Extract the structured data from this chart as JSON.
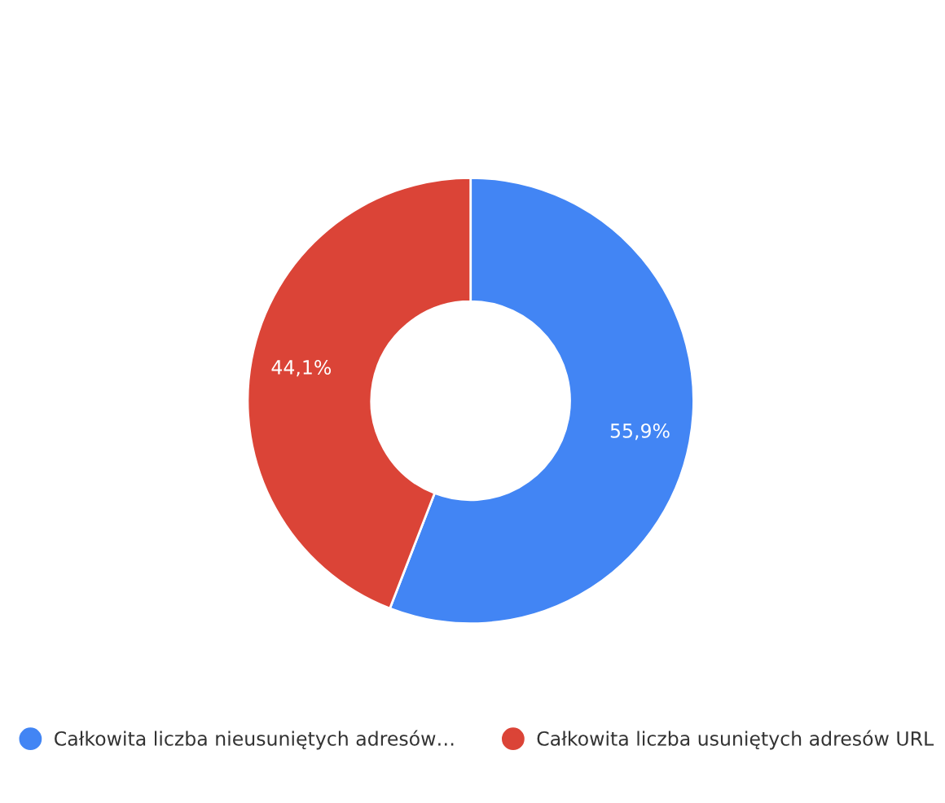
{
  "chart_data": {
    "type": "donut",
    "categories": [
      "Całkowita liczba nieusuniętych adresów…",
      "Całkowita liczba usuniętych adresów URL"
    ],
    "values": [
      55.9,
      44.1
    ],
    "colors": [
      "#4285f4",
      "#db4437"
    ],
    "value_labels": [
      "55,9%",
      "44,1%"
    ],
    "legend": "bottom"
  }
}
